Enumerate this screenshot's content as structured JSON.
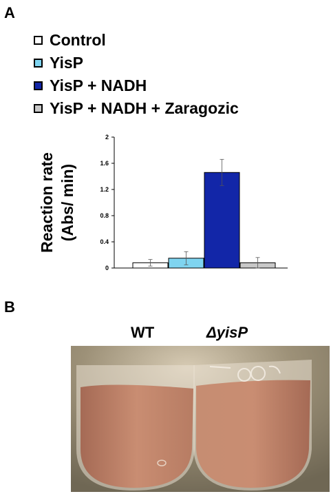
{
  "panels": {
    "a": "A",
    "b": "B"
  },
  "legend": [
    {
      "label": "Control",
      "color": "#ffffff"
    },
    {
      "label": "YisP",
      "color": "#7fd4f0"
    },
    {
      "label": "YisP + NADH",
      "color": "#1226a8"
    },
    {
      "label": "YisP + NADH + Zaragozic",
      "color": "#c8c8c8"
    }
  ],
  "chart_data": {
    "type": "bar",
    "categories": [
      "Control",
      "YisP",
      "YisP + NADH",
      "YisP + NADH + Zaragozic"
    ],
    "values": [
      0.08,
      0.15,
      1.46,
      0.08
    ],
    "errors": [
      0.05,
      0.1,
      0.2,
      0.08
    ],
    "colors": [
      "#ffffff",
      "#7fd4f0",
      "#1226a8",
      "#c8c8c8"
    ],
    "ylabel_line1": "Reaction rate",
    "ylabel_line2": "(Abs/ min)",
    "ylim": [
      0,
      2
    ],
    "yticks": [
      "0",
      "0.4",
      "0.8",
      "1.2",
      "1.6",
      "2"
    ],
    "ytick_values": [
      0,
      0.4,
      0.8,
      1.2,
      1.6,
      2
    ],
    "grid": false
  },
  "photo": {
    "label_left": "WT",
    "label_right": "ΔyisP",
    "colors": {
      "background": "#6f6754",
      "liquid": "#c98d72",
      "liquid_dark": "#a56a55",
      "tube": "#e9e0d2"
    }
  }
}
